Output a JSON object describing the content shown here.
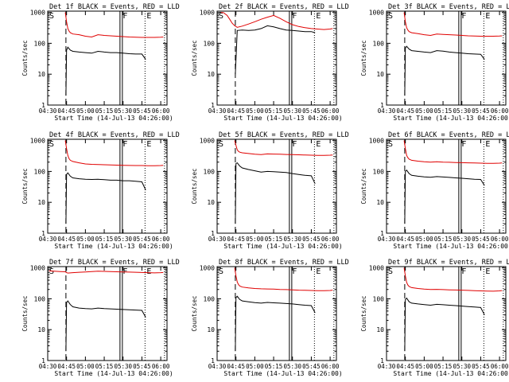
{
  "colors": {
    "events": "#000000",
    "lld": "#e00000",
    "axis": "#000000",
    "background": "#ffffff"
  },
  "common": {
    "xlabel": "Start Time (14-Jul-13 04:26:00)",
    "ylabel": "Counts/sec",
    "title_suffix": "BLACK = Events, RED = LLD",
    "xticks": [
      "04:30",
      "04:45",
      "05:00",
      "05:15",
      "05:30",
      "05:45",
      "06:00"
    ],
    "xtick_minutes": [
      30,
      45,
      60,
      75,
      90,
      105,
      120
    ],
    "yticks": [
      "1",
      "10",
      "100",
      "1000"
    ],
    "ytick_values": [
      1,
      10,
      100,
      1000
    ],
    "xlim_minutes": [
      30,
      125
    ],
    "ylim": [
      1,
      1100
    ],
    "y_scale": "log",
    "markers": [
      {
        "label": "S",
        "minute": 30,
        "style": "solid"
      },
      {
        "label": "",
        "minute": 44.5,
        "style": "dashed"
      },
      {
        "label": "F",
        "minute": 88.5,
        "style": "double"
      },
      {
        "label": "E",
        "minute": 107.5,
        "style": "dotted"
      },
      {
        "label": "",
        "minute": 123,
        "style": "dotted"
      }
    ]
  },
  "chart_data": [
    {
      "type": "line",
      "title": "Det 1f",
      "series": [
        {
          "name": "Events",
          "color": "#000000",
          "x": [
            44.5,
            45,
            46,
            48,
            50,
            55,
            60,
            65,
            70,
            75,
            80,
            85,
            90,
            95,
            100,
            105,
            108
          ],
          "values": [
            2,
            60,
            75,
            60,
            55,
            52,
            50,
            48,
            55,
            52,
            50,
            50,
            48,
            46,
            45,
            45,
            30
          ]
        },
        {
          "name": "LLD",
          "color": "#e00000",
          "x": [
            44,
            45,
            46,
            47,
            48,
            50,
            55,
            60,
            65,
            70,
            75,
            80,
            85,
            90,
            95,
            100,
            105,
            110,
            115,
            120,
            122
          ],
          "values": [
            1000,
            500,
            300,
            250,
            220,
            200,
            190,
            170,
            160,
            190,
            180,
            175,
            170,
            165,
            160,
            158,
            155,
            155,
            155,
            158,
            160
          ]
        }
      ]
    },
    {
      "type": "line",
      "title": "Det 2f",
      "series": [
        {
          "name": "Events",
          "color": "#000000",
          "x": [
            44.5,
            46,
            50,
            55,
            60,
            65,
            70,
            75,
            80,
            85,
            90,
            95,
            100,
            105,
            108
          ],
          "values": [
            10,
            260,
            270,
            260,
            270,
            300,
            370,
            340,
            300,
            270,
            260,
            250,
            240,
            240,
            220
          ]
        },
        {
          "name": "LLD",
          "color": "#e00000",
          "x": [
            33,
            35,
            38,
            40,
            42,
            44,
            46,
            50,
            55,
            60,
            65,
            70,
            75,
            80,
            85,
            90,
            95,
            100,
            105,
            110,
            115,
            120,
            122
          ],
          "values": [
            1000,
            980,
            800,
            600,
            450,
            370,
            330,
            360,
            420,
            500,
            600,
            700,
            800,
            650,
            500,
            400,
            350,
            320,
            300,
            290,
            280,
            290,
            300
          ]
        }
      ]
    },
    {
      "type": "line",
      "title": "Det 3f",
      "series": [
        {
          "name": "Events",
          "color": "#000000",
          "x": [
            44.5,
            45,
            46,
            48,
            50,
            55,
            60,
            65,
            70,
            75,
            80,
            85,
            90,
            95,
            100,
            105,
            108
          ],
          "values": [
            2,
            70,
            80,
            65,
            58,
            55,
            52,
            50,
            58,
            56,
            52,
            50,
            48,
            46,
            45,
            44,
            30
          ]
        },
        {
          "name": "LLD",
          "color": "#e00000",
          "x": [
            44,
            45,
            46,
            47,
            48,
            50,
            55,
            60,
            65,
            70,
            75,
            80,
            85,
            90,
            95,
            100,
            105,
            110,
            115,
            120,
            122
          ],
          "values": [
            1000,
            500,
            320,
            270,
            240,
            220,
            205,
            190,
            180,
            200,
            195,
            190,
            185,
            180,
            175,
            172,
            170,
            170,
            170,
            172,
            175
          ]
        }
      ]
    },
    {
      "type": "line",
      "title": "Det 4f",
      "series": [
        {
          "name": "Events",
          "color": "#000000",
          "x": [
            44.5,
            45,
            46,
            48,
            50,
            55,
            60,
            65,
            70,
            75,
            80,
            85,
            90,
            95,
            100,
            105,
            108
          ],
          "values": [
            2,
            80,
            90,
            70,
            62,
            58,
            56,
            55,
            56,
            54,
            52,
            52,
            50,
            50,
            48,
            46,
            25
          ]
        },
        {
          "name": "LLD",
          "color": "#e00000",
          "x": [
            44,
            45,
            46,
            47,
            48,
            50,
            55,
            60,
            65,
            70,
            75,
            80,
            85,
            90,
            95,
            100,
            105,
            110,
            115,
            120,
            122
          ],
          "values": [
            1000,
            550,
            330,
            260,
            230,
            210,
            190,
            175,
            170,
            168,
            165,
            162,
            160,
            158,
            156,
            155,
            155,
            153,
            152,
            155,
            158
          ]
        }
      ]
    },
    {
      "type": "line",
      "title": "Det 5f",
      "series": [
        {
          "name": "Events",
          "color": "#000000",
          "x": [
            44.5,
            45,
            46,
            48,
            50,
            55,
            60,
            65,
            70,
            75,
            80,
            85,
            90,
            95,
            100,
            105,
            108
          ],
          "values": [
            2,
            180,
            190,
            150,
            130,
            115,
            105,
            95,
            100,
            98,
            95,
            92,
            85,
            80,
            75,
            72,
            40
          ]
        },
        {
          "name": "LLD",
          "color": "#e00000",
          "x": [
            44,
            45,
            46,
            47,
            48,
            50,
            55,
            60,
            65,
            70,
            75,
            80,
            85,
            90,
            95,
            100,
            105,
            110,
            115,
            120,
            122
          ],
          "values": [
            1000,
            700,
            500,
            450,
            420,
            400,
            380,
            360,
            350,
            370,
            365,
            360,
            355,
            350,
            345,
            340,
            335,
            330,
            330,
            335,
            340
          ]
        }
      ]
    },
    {
      "type": "line",
      "title": "Det 6f",
      "series": [
        {
          "name": "Events",
          "color": "#000000",
          "x": [
            44.5,
            45,
            46,
            48,
            50,
            55,
            60,
            65,
            70,
            75,
            80,
            85,
            90,
            95,
            100,
            105,
            108
          ],
          "values": [
            2,
            100,
            110,
            85,
            75,
            70,
            67,
            65,
            68,
            66,
            64,
            62,
            60,
            58,
            56,
            55,
            35
          ]
        },
        {
          "name": "LLD",
          "color": "#e00000",
          "x": [
            44,
            45,
            46,
            47,
            48,
            50,
            55,
            60,
            65,
            70,
            75,
            80,
            85,
            90,
            95,
            100,
            105,
            110,
            115,
            120,
            122
          ],
          "values": [
            1000,
            550,
            330,
            280,
            250,
            230,
            215,
            205,
            200,
            205,
            200,
            198,
            195,
            192,
            190,
            188,
            185,
            183,
            182,
            185,
            188
          ]
        }
      ]
    },
    {
      "type": "line",
      "title": "Det 7f",
      "series": [
        {
          "name": "Events",
          "color": "#000000",
          "x": [
            44.5,
            45,
            46,
            48,
            50,
            55,
            60,
            65,
            70,
            75,
            80,
            85,
            90,
            95,
            100,
            105,
            108
          ],
          "values": [
            2,
            75,
            85,
            65,
            55,
            50,
            48,
            47,
            50,
            48,
            47,
            46,
            45,
            44,
            43,
            42,
            25
          ]
        },
        {
          "name": "LLD",
          "color": "#e00000",
          "x": [
            31,
            35,
            40,
            44,
            45,
            46,
            50,
            55,
            60,
            65,
            70,
            75,
            80,
            85,
            90,
            95,
            100,
            105,
            110,
            115,
            120,
            122
          ],
          "values": [
            800,
            780,
            760,
            750,
            700,
            680,
            700,
            720,
            740,
            760,
            780,
            770,
            760,
            750,
            740,
            730,
            720,
            710,
            700,
            690,
            700,
            710
          ]
        }
      ]
    },
    {
      "type": "line",
      "title": "Det 8f",
      "series": [
        {
          "name": "Events",
          "color": "#000000",
          "x": [
            44.5,
            45,
            46,
            48,
            50,
            55,
            60,
            65,
            70,
            75,
            80,
            85,
            90,
            95,
            100,
            105,
            108
          ],
          "values": [
            2,
            110,
            120,
            95,
            85,
            80,
            75,
            72,
            76,
            74,
            72,
            70,
            68,
            65,
            62,
            60,
            35
          ]
        },
        {
          "name": "LLD",
          "color": "#e00000",
          "x": [
            44,
            45,
            46,
            47,
            48,
            50,
            55,
            60,
            65,
            70,
            75,
            80,
            85,
            90,
            95,
            100,
            105,
            110,
            115,
            120,
            122
          ],
          "values": [
            1000,
            550,
            350,
            290,
            260,
            240,
            225,
            215,
            210,
            208,
            205,
            200,
            198,
            195,
            190,
            188,
            185,
            183,
            182,
            185,
            190
          ]
        }
      ]
    },
    {
      "type": "line",
      "title": "Det 9f",
      "series": [
        {
          "name": "Events",
          "color": "#000000",
          "x": [
            44.5,
            45,
            46,
            48,
            50,
            55,
            60,
            65,
            70,
            75,
            80,
            85,
            90,
            95,
            100,
            105,
            108
          ],
          "values": [
            2,
            95,
            105,
            80,
            72,
            68,
            65,
            62,
            66,
            64,
            62,
            60,
            58,
            56,
            54,
            52,
            30
          ]
        },
        {
          "name": "LLD",
          "color": "#e00000",
          "x": [
            44,
            45,
            46,
            47,
            48,
            50,
            55,
            60,
            65,
            70,
            75,
            80,
            85,
            90,
            95,
            100,
            105,
            110,
            115,
            120,
            122
          ],
          "values": [
            1000,
            550,
            340,
            280,
            250,
            230,
            215,
            205,
            200,
            202,
            198,
            195,
            192,
            190,
            186,
            183,
            180,
            178,
            176,
            180,
            184
          ]
        }
      ]
    }
  ]
}
